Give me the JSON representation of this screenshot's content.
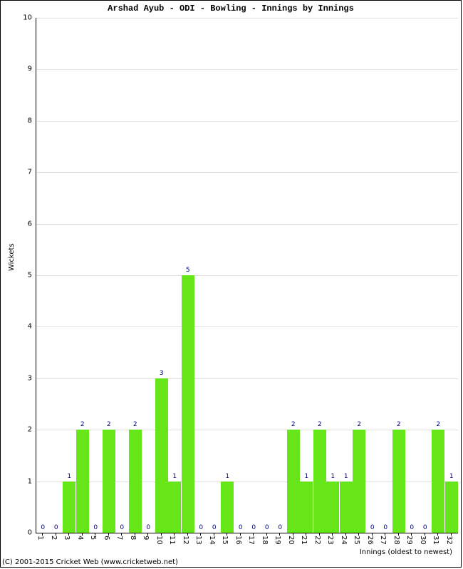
{
  "chart": {
    "type": "bar",
    "title": "Arshad Ayub - ODI - Bowling - Innings by Innings",
    "title_font": "Courier New",
    "title_fontsize": 12,
    "title_fontweight": "bold",
    "xlabel": "Innings (oldest to newest)",
    "ylabel": "Wickets",
    "label_fontsize": 10,
    "copyright": "(C) 2001-2015 Cricket Web (www.cricketweb.net)",
    "ylim": [
      0,
      10
    ],
    "ytick_step": 1,
    "xlim": [
      1,
      32
    ],
    "background_color": "#ffffff",
    "grid_color": "#e0e0e0",
    "bar_color": "#66e619",
    "value_label_color": "#000080",
    "border_color": "#000000",
    "bar_width": 0.95,
    "categories": [
      "1",
      "2",
      "3",
      "4",
      "5",
      "6",
      "7",
      "8",
      "9",
      "10",
      "11",
      "12",
      "13",
      "14",
      "15",
      "16",
      "17",
      "18",
      "19",
      "20",
      "21",
      "22",
      "23",
      "24",
      "25",
      "26",
      "27",
      "28",
      "29",
      "30",
      "31",
      "32"
    ],
    "values": [
      0,
      0,
      1,
      2,
      0,
      2,
      0,
      2,
      0,
      3,
      1,
      5,
      0,
      0,
      1,
      0,
      0,
      0,
      0,
      2,
      1,
      2,
      1,
      1,
      2,
      0,
      0,
      2,
      0,
      0,
      2,
      1
    ]
  }
}
